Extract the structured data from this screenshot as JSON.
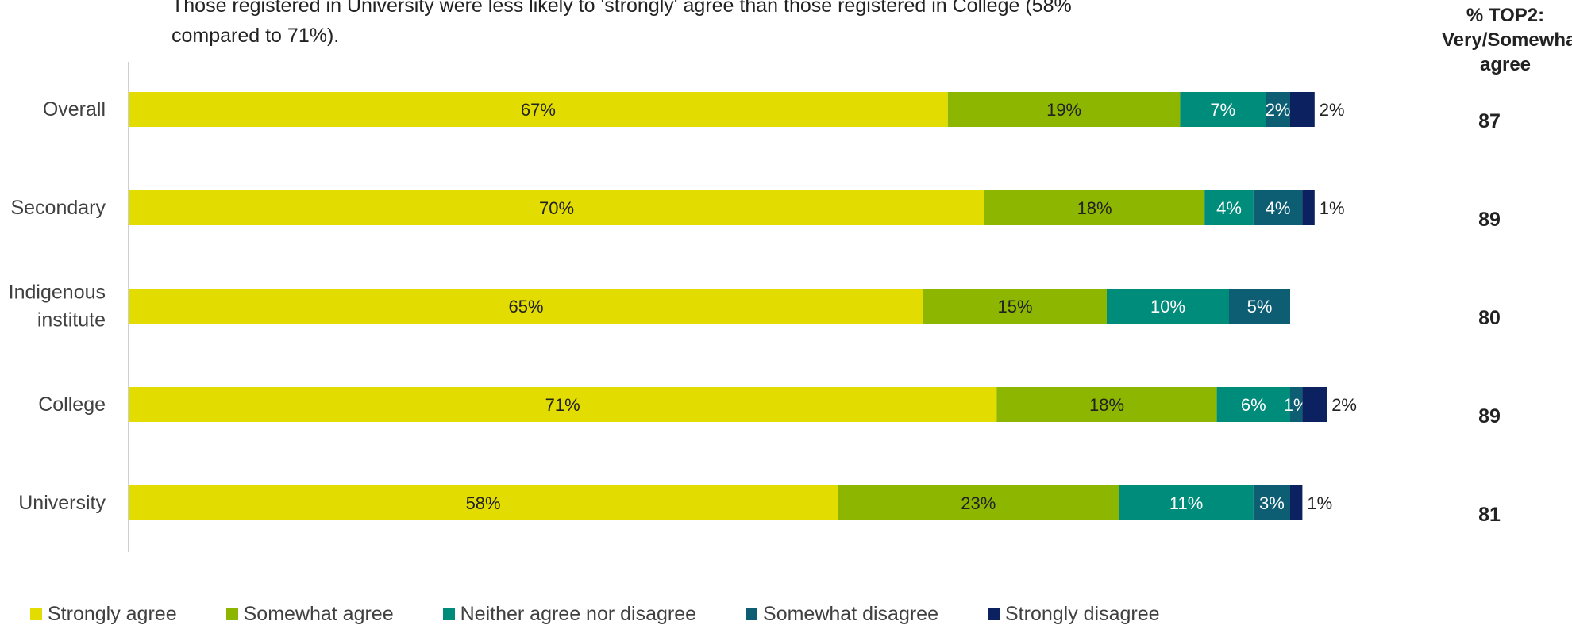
{
  "note": {
    "line1": "Those registered in University were less likely to 'strongly' agree than those registered in College (58%",
    "line2": "compared to 71%)."
  },
  "top2_header": {
    "line1": "% TOP2:",
    "line2": "Very/Somewhat",
    "line3": "agree"
  },
  "chart_data": {
    "type": "bar",
    "orientation": "horizontal",
    "stacked": true,
    "categories": [
      "Overall",
      "Secondary",
      "Indigenous institute",
      "College",
      "University"
    ],
    "series": [
      {
        "name": "Strongly agree",
        "color": "#e2dc00",
        "values": [
          67,
          70,
          65,
          71,
          58
        ],
        "labels": [
          "67%",
          "70%",
          "65%",
          "71%",
          "58%"
        ]
      },
      {
        "name": "Somewhat agree",
        "color": "#8db600",
        "values": [
          19,
          18,
          15,
          18,
          23
        ],
        "labels": [
          "19%",
          "18%",
          "15%",
          "18%",
          "23%"
        ]
      },
      {
        "name": "Neither agree nor disagree",
        "color": "#008c7a",
        "values": [
          7,
          4,
          10,
          6,
          11
        ],
        "labels": [
          "7%",
          "4%",
          "10%",
          "6%",
          "11%"
        ]
      },
      {
        "name": "Somewhat disagree",
        "color": "#0e5e73",
        "values": [
          2,
          4,
          5,
          1,
          3
        ],
        "labels": [
          "2%",
          "4%",
          "5%",
          "1%",
          "3%"
        ]
      },
      {
        "name": "Strongly disagree",
        "color": "#0c2260",
        "values": [
          2,
          1,
          0,
          2,
          1
        ],
        "labels": [
          "2%",
          "1%",
          "",
          "2%",
          "1%"
        ]
      }
    ],
    "top2_values": [
      "87",
      "89",
      "80",
      "89",
      "81"
    ],
    "xlim": [
      0,
      100
    ],
    "legend_position": "bottom"
  }
}
